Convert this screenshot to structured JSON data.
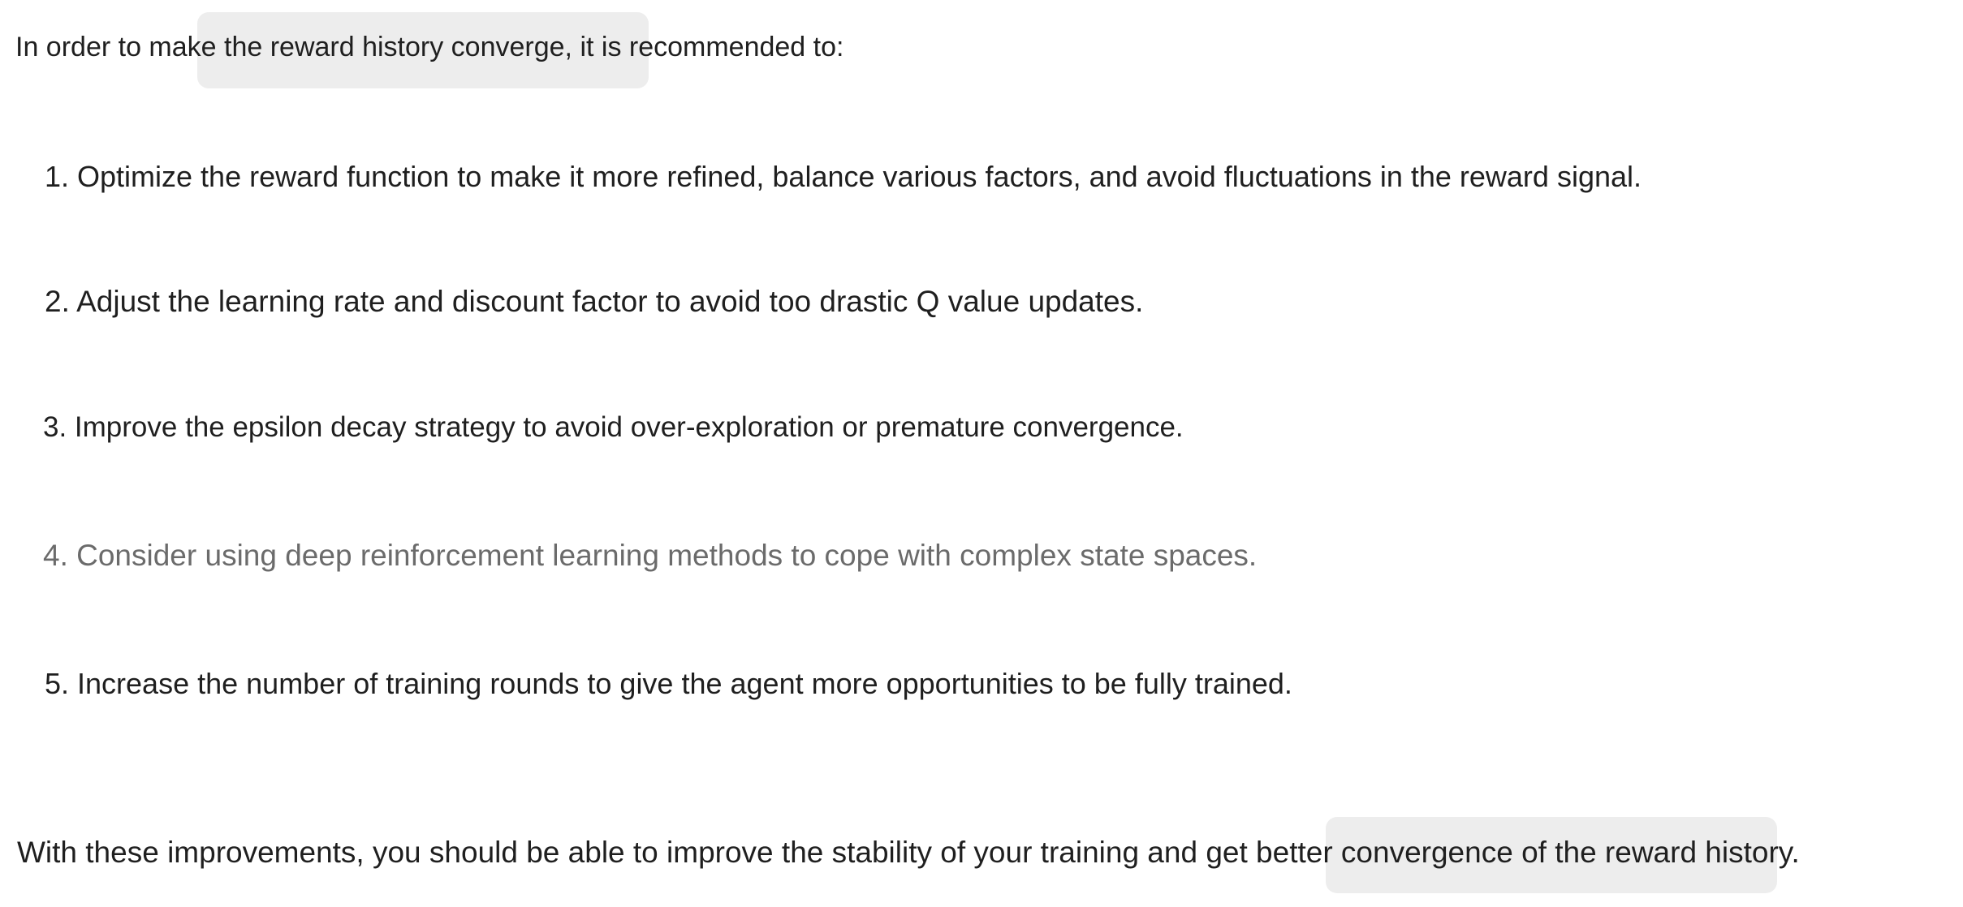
{
  "intro": "In order to make the reward history converge, it is recommended to:",
  "items": [
    "1. Optimize the reward function to make it more refined, balance various factors, and avoid fluctuations in the reward signal.",
    "2. Adjust the learning rate and discount factor to avoid too drastic Q value updates.",
    "3. Improve the epsilon decay strategy to avoid over-exploration or premature convergence.",
    "4. Consider using deep reinforcement learning methods to cope with complex state spaces.",
    "5. Increase the number of training rounds to give the agent more opportunities to be fully trained."
  ],
  "outro": "With these improvements, you should be able to improve the stability of your training and get better convergence of the reward history.",
  "colors": {
    "text": "#1f1f1f",
    "muted_text": "#6b6b6b",
    "highlight": "#ededed",
    "background": "#ffffff"
  }
}
